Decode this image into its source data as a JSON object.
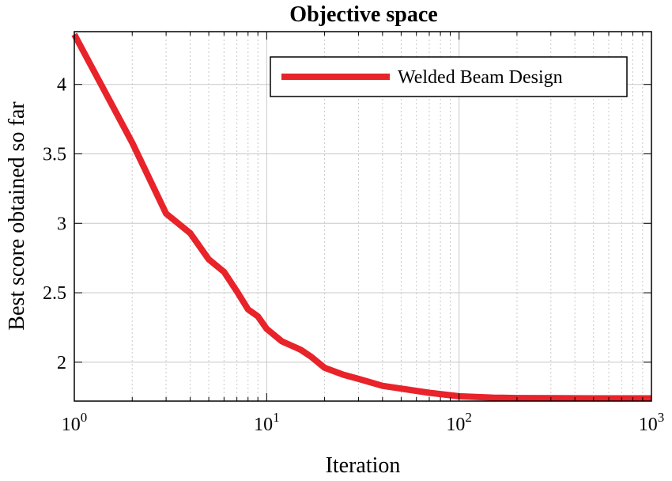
{
  "chart_data": {
    "type": "line",
    "title": "Objective space",
    "xlabel": "Iteration",
    "ylabel": "Best score obtained so far",
    "xscale": "log",
    "xlim": [
      1,
      1000
    ],
    "ylim": [
      1.72,
      4.38
    ],
    "xticks": [
      {
        "base": "10",
        "exp": "0"
      },
      {
        "base": "10",
        "exp": "1"
      },
      {
        "base": "10",
        "exp": "2"
      },
      {
        "base": "10",
        "exp": "3"
      }
    ],
    "yticks": [
      "2",
      "2.5",
      "3",
      "3.5",
      "4"
    ],
    "grid": true,
    "legend_position": "top-right",
    "series": [
      {
        "name": "Welded Beam Design",
        "color": "#e8232a",
        "x": [
          1,
          2,
          3,
          4,
          5,
          6,
          7,
          8,
          9,
          10,
          12,
          15,
          17,
          20,
          25,
          30,
          40,
          50,
          70,
          100,
          150,
          200,
          300,
          500,
          700,
          1000
        ],
        "y": [
          4.36,
          3.58,
          3.07,
          2.93,
          2.74,
          2.65,
          2.51,
          2.38,
          2.33,
          2.24,
          2.15,
          2.09,
          2.04,
          1.96,
          1.91,
          1.88,
          1.83,
          1.81,
          1.78,
          1.755,
          1.745,
          1.742,
          1.741,
          1.74,
          1.74,
          1.74
        ]
      }
    ]
  }
}
